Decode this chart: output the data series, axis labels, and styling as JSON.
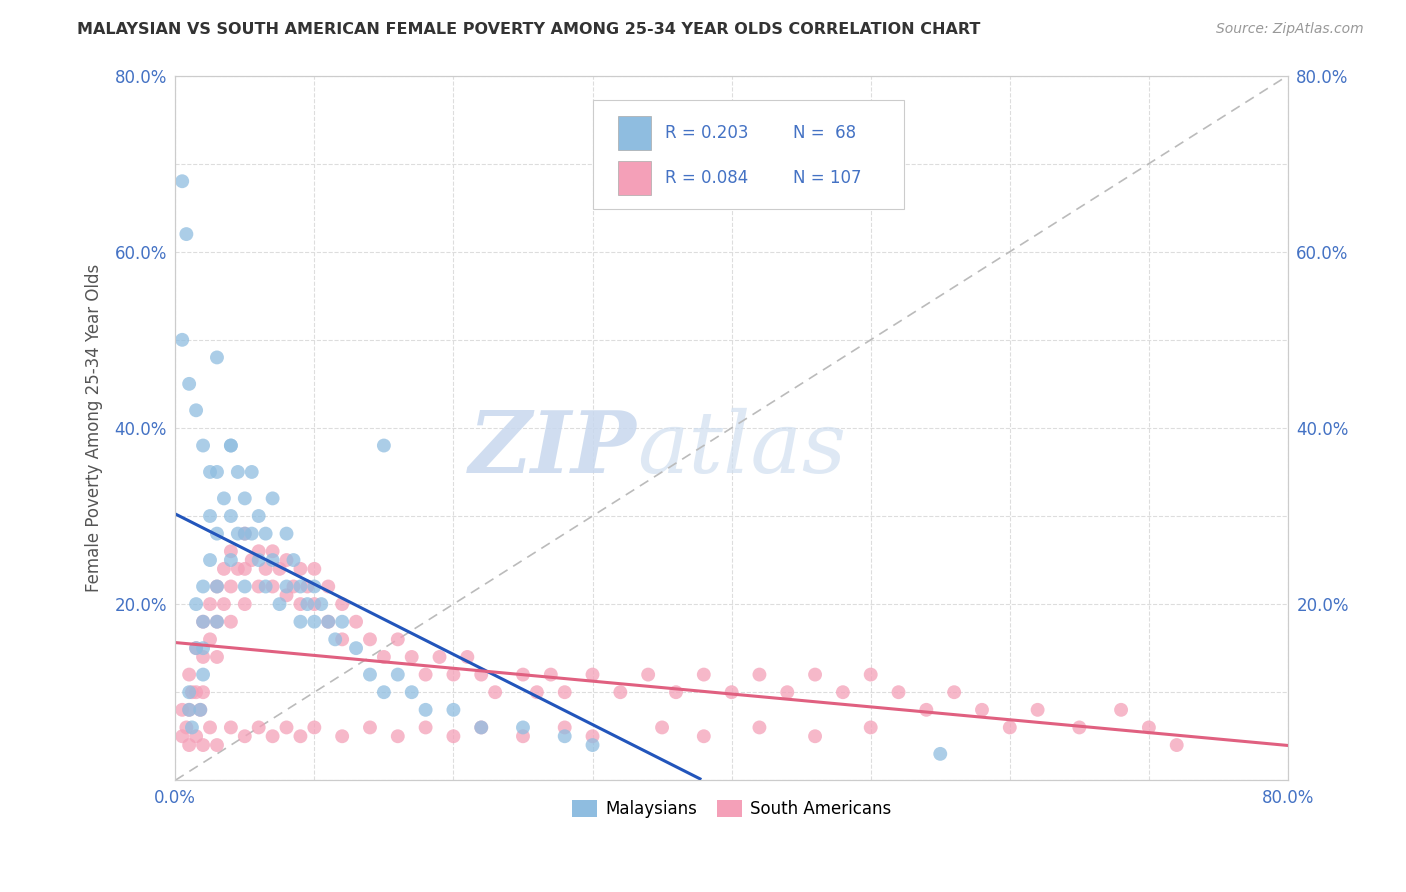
{
  "title": "MALAYSIAN VS SOUTH AMERICAN FEMALE POVERTY AMONG 25-34 YEAR OLDS CORRELATION CHART",
  "source": "Source: ZipAtlas.com",
  "ylabel": "Female Poverty Among 25-34 Year Olds",
  "xlim": [
    0.0,
    0.8
  ],
  "ylim": [
    0.0,
    0.8
  ],
  "malaysian_color": "#8FBDE0",
  "south_american_color": "#F4A0B8",
  "malaysian_line_color": "#2255BB",
  "south_american_line_color": "#E06080",
  "R_malaysian": 0.203,
  "N_malaysian": 68,
  "R_south_american": 0.084,
  "N_south_american": 107,
  "background_color": "#FFFFFF",
  "grid_color": "#DDDDDD",
  "watermark_zip": "ZIP",
  "watermark_atlas": "atlas",
  "legend_label_1": "Malaysians",
  "legend_label_2": "South Americans",
  "malaysian_x": [
    0.005,
    0.008,
    0.01,
    0.01,
    0.012,
    0.015,
    0.015,
    0.018,
    0.02,
    0.02,
    0.02,
    0.02,
    0.025,
    0.025,
    0.03,
    0.03,
    0.03,
    0.03,
    0.035,
    0.04,
    0.04,
    0.04,
    0.045,
    0.045,
    0.05,
    0.05,
    0.05,
    0.055,
    0.055,
    0.06,
    0.06,
    0.065,
    0.065,
    0.07,
    0.07,
    0.075,
    0.08,
    0.08,
    0.085,
    0.09,
    0.09,
    0.095,
    0.1,
    0.1,
    0.105,
    0.11,
    0.115,
    0.12,
    0.13,
    0.14,
    0.15,
    0.16,
    0.17,
    0.18,
    0.2,
    0.22,
    0.25,
    0.28,
    0.3,
    0.005,
    0.01,
    0.015,
    0.02,
    0.025,
    0.03,
    0.04,
    0.55,
    0.15
  ],
  "malaysian_y": [
    0.68,
    0.62,
    0.1,
    0.08,
    0.06,
    0.2,
    0.15,
    0.08,
    0.22,
    0.18,
    0.15,
    0.12,
    0.3,
    0.25,
    0.35,
    0.28,
    0.22,
    0.18,
    0.32,
    0.38,
    0.3,
    0.25,
    0.35,
    0.28,
    0.32,
    0.28,
    0.22,
    0.35,
    0.28,
    0.3,
    0.25,
    0.28,
    0.22,
    0.32,
    0.25,
    0.2,
    0.28,
    0.22,
    0.25,
    0.22,
    0.18,
    0.2,
    0.22,
    0.18,
    0.2,
    0.18,
    0.16,
    0.18,
    0.15,
    0.12,
    0.1,
    0.12,
    0.1,
    0.08,
    0.08,
    0.06,
    0.06,
    0.05,
    0.04,
    0.5,
    0.45,
    0.42,
    0.38,
    0.35,
    0.48,
    0.38,
    0.03,
    0.38
  ],
  "south_american_x": [
    0.005,
    0.008,
    0.01,
    0.01,
    0.012,
    0.015,
    0.015,
    0.018,
    0.02,
    0.02,
    0.02,
    0.025,
    0.025,
    0.03,
    0.03,
    0.03,
    0.035,
    0.035,
    0.04,
    0.04,
    0.04,
    0.045,
    0.05,
    0.05,
    0.05,
    0.055,
    0.06,
    0.06,
    0.065,
    0.07,
    0.07,
    0.075,
    0.08,
    0.08,
    0.085,
    0.09,
    0.09,
    0.095,
    0.1,
    0.1,
    0.11,
    0.11,
    0.12,
    0.12,
    0.13,
    0.14,
    0.15,
    0.16,
    0.17,
    0.18,
    0.19,
    0.2,
    0.21,
    0.22,
    0.23,
    0.25,
    0.26,
    0.27,
    0.28,
    0.3,
    0.32,
    0.34,
    0.36,
    0.38,
    0.4,
    0.42,
    0.44,
    0.46,
    0.48,
    0.5,
    0.52,
    0.54,
    0.56,
    0.58,
    0.6,
    0.62,
    0.65,
    0.68,
    0.7,
    0.72,
    0.005,
    0.01,
    0.015,
    0.02,
    0.025,
    0.03,
    0.04,
    0.05,
    0.06,
    0.07,
    0.08,
    0.09,
    0.1,
    0.12,
    0.14,
    0.16,
    0.18,
    0.2,
    0.22,
    0.25,
    0.28,
    0.3,
    0.35,
    0.38,
    0.42,
    0.46,
    0.5
  ],
  "south_american_y": [
    0.08,
    0.06,
    0.12,
    0.08,
    0.1,
    0.15,
    0.1,
    0.08,
    0.18,
    0.14,
    0.1,
    0.2,
    0.16,
    0.22,
    0.18,
    0.14,
    0.24,
    0.2,
    0.26,
    0.22,
    0.18,
    0.24,
    0.28,
    0.24,
    0.2,
    0.25,
    0.26,
    0.22,
    0.24,
    0.26,
    0.22,
    0.24,
    0.25,
    0.21,
    0.22,
    0.24,
    0.2,
    0.22,
    0.24,
    0.2,
    0.22,
    0.18,
    0.2,
    0.16,
    0.18,
    0.16,
    0.14,
    0.16,
    0.14,
    0.12,
    0.14,
    0.12,
    0.14,
    0.12,
    0.1,
    0.12,
    0.1,
    0.12,
    0.1,
    0.12,
    0.1,
    0.12,
    0.1,
    0.12,
    0.1,
    0.12,
    0.1,
    0.12,
    0.1,
    0.12,
    0.1,
    0.08,
    0.1,
    0.08,
    0.06,
    0.08,
    0.06,
    0.08,
    0.06,
    0.04,
    0.05,
    0.04,
    0.05,
    0.04,
    0.06,
    0.04,
    0.06,
    0.05,
    0.06,
    0.05,
    0.06,
    0.05,
    0.06,
    0.05,
    0.06,
    0.05,
    0.06,
    0.05,
    0.06,
    0.05,
    0.06,
    0.05,
    0.06,
    0.05,
    0.06,
    0.05,
    0.06
  ]
}
